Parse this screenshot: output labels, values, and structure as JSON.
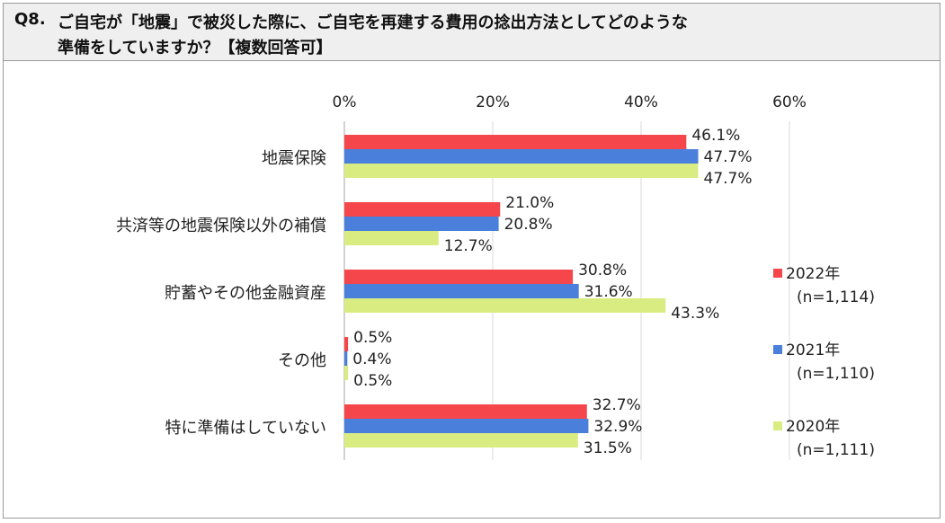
{
  "question": {
    "number": "Q8.",
    "line1": "ご自宅が「地震」で被災した際に、ご自宅を再建する費用の捻出方法としてどのような",
    "line2": "準備をしていますか？【複数回答可】"
  },
  "chart_data": {
    "type": "bar",
    "orientation": "horizontal",
    "x_ticks": [
      "0%",
      "20%",
      "40%",
      "60%"
    ],
    "xlim": [
      0,
      60
    ],
    "grid": true,
    "categories": [
      "地震保険",
      "共済等の地震保険以外の補償",
      "貯蓄やその他金融資産",
      "その他",
      "特に準備はしていない"
    ],
    "series": [
      {
        "name": "2022年",
        "n": "(n=1,114)",
        "color": "#f5474b",
        "values": [
          46.1,
          21.0,
          30.8,
          0.5,
          32.7
        ],
        "labels": [
          "46.1%",
          "21.0%",
          "30.8%",
          "0.5%",
          "32.7%"
        ]
      },
      {
        "name": "2021年",
        "n": "(n=1,110)",
        "color": "#4a7fdc",
        "values": [
          47.7,
          20.8,
          31.6,
          0.4,
          32.9
        ],
        "labels": [
          "47.7%",
          "20.8%",
          "31.6%",
          "0.4%",
          "32.9%"
        ]
      },
      {
        "name": "2020年",
        "n": "(n=1,111)",
        "color": "#d9ec82",
        "values": [
          47.7,
          12.7,
          43.3,
          0.5,
          31.5
        ],
        "labels": [
          "47.7%",
          "12.7%",
          "43.3%",
          "0.5%",
          "31.5%"
        ]
      }
    ],
    "legend_position": "right"
  }
}
